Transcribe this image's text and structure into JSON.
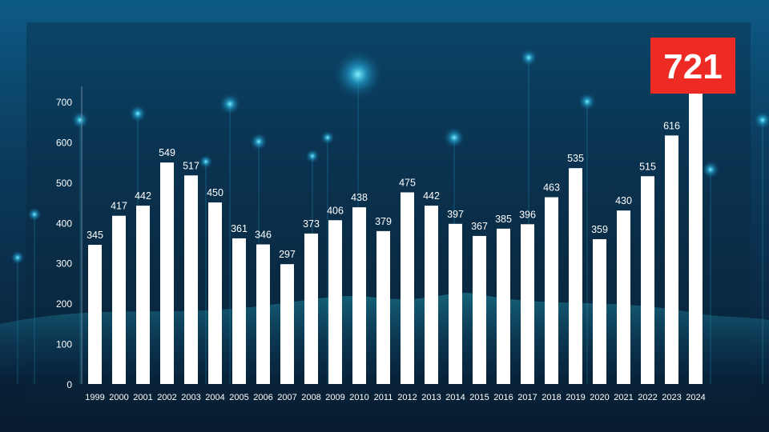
{
  "chart_data": {
    "type": "bar",
    "title": "",
    "xlabel": "",
    "ylabel": "",
    "categories": [
      "1999",
      "2000",
      "2001",
      "2002",
      "2003",
      "2004",
      "2005",
      "2006",
      "2007",
      "2008",
      "2009",
      "2010",
      "2011",
      "2012",
      "2013",
      "2014",
      "2015",
      "2016",
      "2017",
      "2018",
      "2019",
      "2020",
      "2021",
      "2022",
      "2023",
      "2024"
    ],
    "values": [
      345,
      417,
      442,
      549,
      517,
      450,
      361,
      346,
      297,
      373,
      406,
      438,
      379,
      475,
      442,
      397,
      367,
      385,
      396,
      463,
      535,
      359,
      430,
      515,
      616,
      721
    ],
    "ylim": [
      0,
      700
    ],
    "yticks": [
      0,
      100,
      200,
      300,
      400,
      500,
      600,
      700
    ],
    "grid": false,
    "bar_color": "#ffffff",
    "highlight": {
      "category": "2024",
      "label": "721",
      "color": "#ee2a24"
    }
  }
}
